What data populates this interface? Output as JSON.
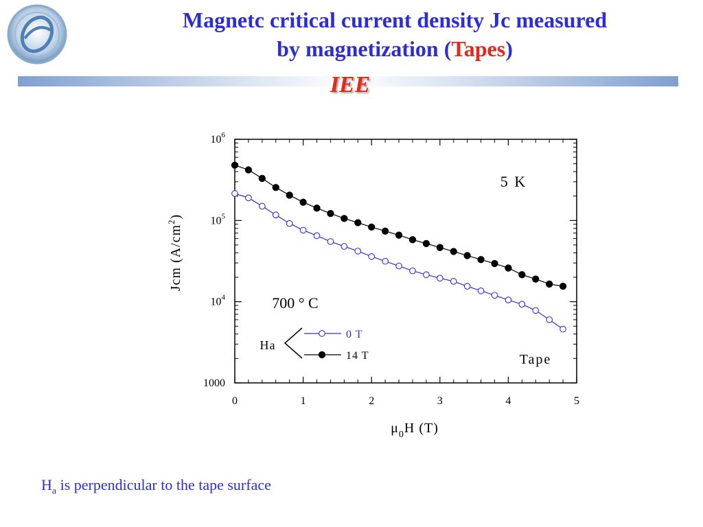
{
  "slide": {
    "title_line1": "Magnetc critical current density Jc measured",
    "title_line2_prefix": "by magnetization (",
    "title_line2_highlight": "Tapes",
    "title_line2_suffix": ")",
    "subtitle": "IEE",
    "footnote_main": "H",
    "footnote_sub": "a",
    "footnote_rest": " is perpendicular to the tape surface"
  },
  "colors": {
    "title": "#2d2dd8",
    "highlight": "#e8261a",
    "series_0T": "#2d2dd8",
    "series_14T": "#000000"
  },
  "chart_data": {
    "type": "line",
    "x_label_parts": [
      "μ",
      "0",
      "H (T)"
    ],
    "y_label_parts": [
      "Jcm (A/cm",
      "2",
      ")"
    ],
    "xlim": [
      0,
      5
    ],
    "x_ticks": [
      "0",
      "1",
      "2",
      "3",
      "4",
      "5"
    ],
    "ylim": [
      1000,
      1000000
    ],
    "y_scale": "log",
    "y_tick_labels": [
      {
        "value": 1000,
        "base": "1000",
        "exp": ""
      },
      {
        "value": 10000,
        "base": "10",
        "exp": "4"
      },
      {
        "value": 100000,
        "base": "10",
        "exp": "5"
      },
      {
        "value": 1000000,
        "base": "10",
        "exp": "6"
      }
    ],
    "grid": false,
    "annotations": [
      "5 K",
      "700 ° C",
      "Tape"
    ],
    "legend": {
      "prefix": "Ha",
      "position": "bottom-left",
      "entries": [
        "0 T",
        "14 T"
      ]
    },
    "x": [
      0,
      0.2,
      0.4,
      0.6,
      0.8,
      1.0,
      1.2,
      1.4,
      1.6,
      1.8,
      2.0,
      2.2,
      2.4,
      2.6,
      2.8,
      3.0,
      3.2,
      3.4,
      3.6,
      3.8,
      4.0,
      4.2,
      4.4,
      4.6,
      4.8
    ],
    "series": [
      {
        "name": "14 T",
        "marker": "filled-circle",
        "color": "#000000",
        "values": [
          480000,
          420000,
          330000,
          255000,
          205000,
          168000,
          142000,
          122000,
          106000,
          94000,
          83000,
          74000,
          66000,
          58000,
          52000,
          46500,
          41500,
          37000,
          33000,
          29500,
          26000,
          21500,
          19000,
          16500,
          15500
        ]
      },
      {
        "name": "0 T",
        "marker": "open-circle",
        "color": "#2d2dd8",
        "values": [
          215000,
          190000,
          150000,
          117000,
          92000,
          76000,
          65000,
          55000,
          48000,
          42000,
          36000,
          31500,
          27500,
          24000,
          21500,
          19500,
          17800,
          15500,
          13600,
          12000,
          10500,
          9300,
          7800,
          6000,
          4600
        ]
      }
    ]
  }
}
